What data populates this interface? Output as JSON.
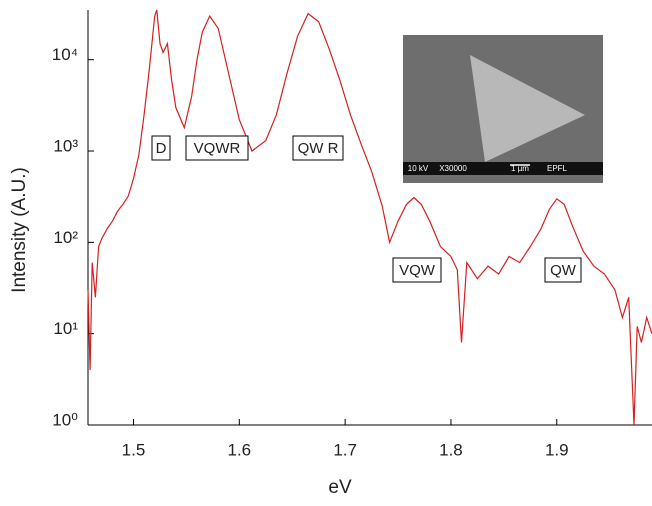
{
  "chart_data": {
    "type": "line",
    "xlabel": "eV",
    "ylabel": "Intensity (A.U.)",
    "x": [
      1.457,
      1.459,
      1.461,
      1.464,
      1.467,
      1.47,
      1.475,
      1.48,
      1.485,
      1.49,
      1.495,
      1.5,
      1.505,
      1.51,
      1.515,
      1.52,
      1.522,
      1.525,
      1.528,
      1.532,
      1.536,
      1.54,
      1.548,
      1.555,
      1.56,
      1.565,
      1.572,
      1.58,
      1.59,
      1.6,
      1.612,
      1.625,
      1.635,
      1.645,
      1.655,
      1.665,
      1.675,
      1.685,
      1.695,
      1.705,
      1.715,
      1.725,
      1.735,
      1.742,
      1.75,
      1.758,
      1.765,
      1.772,
      1.78,
      1.79,
      1.8,
      1.806,
      1.81,
      1.815,
      1.825,
      1.835,
      1.845,
      1.855,
      1.865,
      1.875,
      1.885,
      1.893,
      1.9,
      1.907,
      1.915,
      1.925,
      1.935,
      1.945,
      1.955,
      1.962,
      1.968,
      1.973,
      1.976,
      1.98,
      1.985,
      1.99
    ],
    "values": [
      30,
      4,
      60,
      25,
      90,
      110,
      140,
      170,
      220,
      260,
      320,
      500,
      900,
      2500,
      8000,
      30000,
      35000,
      15000,
      12000,
      15000,
      6000,
      3000,
      1800,
      4000,
      10000,
      20000,
      30000,
      22000,
      7000,
      2200,
      1000,
      1300,
      2500,
      7000,
      18000,
      32000,
      26000,
      13000,
      6000,
      2500,
      1200,
      600,
      250,
      100,
      170,
      260,
      310,
      260,
      170,
      90,
      70,
      50,
      8,
      60,
      40,
      55,
      45,
      70,
      60,
      90,
      140,
      230,
      300,
      260,
      150,
      80,
      55,
      45,
      30,
      15,
      25,
      1,
      12,
      8,
      15,
      10
    ],
    "color": "#d42020",
    "xlim": [
      1.457,
      1.99
    ],
    "ylim": [
      1,
      35000
    ],
    "log_y": true,
    "xticks": [
      1.5,
      1.6,
      1.7,
      1.8,
      1.9
    ],
    "yticks": [
      {
        "value": 1,
        "label": "10⁰"
      },
      {
        "value": 10,
        "label": "10¹"
      },
      {
        "value": 100,
        "label": "10²"
      },
      {
        "value": 1000,
        "label": "10³"
      },
      {
        "value": 10000,
        "label": "10⁴"
      }
    ],
    "annotations": [
      "D",
      "VQWR",
      "QW R",
      "VQW",
      "QW"
    ],
    "inset_labels": [
      "10 kV",
      "X30000",
      "1 µm",
      "EPFL"
    ]
  }
}
